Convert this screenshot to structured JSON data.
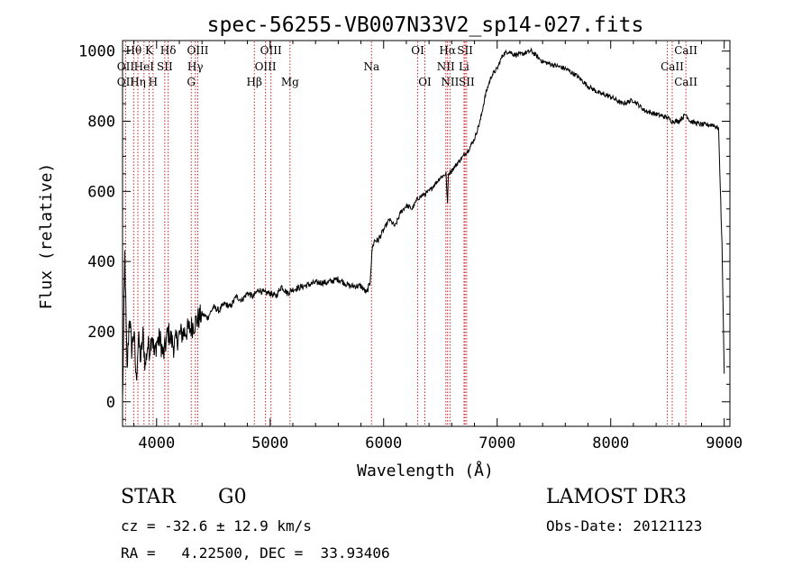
{
  "chart_data": {
    "type": "line",
    "title": "spec-56255-VB007N33V2_sp14-027.fits",
    "xlabel": "Wavelength (Å)",
    "ylabel": "Flux (relative)",
    "xlim": [
      3700,
      9050
    ],
    "ylim": [
      -70,
      1030
    ],
    "xticks": [
      4000,
      5000,
      6000,
      7000,
      8000,
      9000
    ],
    "yticks": [
      0,
      200,
      400,
      600,
      800,
      1000
    ],
    "xtick_labels": [
      "4000",
      "5000",
      "6000",
      "7000",
      "8000",
      "9000"
    ],
    "ytick_labels": [
      "0",
      "200",
      "400",
      "600",
      "800",
      "1000"
    ],
    "series": [
      {
        "name": "flux",
        "x": [
          3700,
          3720,
          3740,
          3760,
          3780,
          3800,
          3820,
          3840,
          3860,
          3880,
          3900,
          3920,
          3940,
          3960,
          3980,
          4000,
          4030,
          4060,
          4100,
          4150,
          4200,
          4250,
          4300,
          4350,
          4400,
          4450,
          4500,
          4550,
          4600,
          4650,
          4700,
          4750,
          4800,
          4850,
          4900,
          4950,
          5000,
          5050,
          5100,
          5150,
          5200,
          5300,
          5400,
          5500,
          5600,
          5700,
          5800,
          5850,
          5880,
          5900,
          5920,
          5950,
          6000,
          6050,
          6100,
          6150,
          6200,
          6250,
          6300,
          6350,
          6400,
          6450,
          6500,
          6550,
          6563,
          6570,
          6600,
          6650,
          6700,
          6750,
          6800,
          6850,
          6900,
          6950,
          7000,
          7050,
          7100,
          7150,
          7200,
          7300,
          7400,
          7500,
          7600,
          7700,
          7800,
          7900,
          8000,
          8100,
          8200,
          8300,
          8400,
          8500,
          8540,
          8600,
          8662,
          8700,
          8800,
          8900,
          8950,
          8980,
          9000
        ],
        "y": [
          0,
          420,
          80,
          250,
          150,
          200,
          60,
          180,
          120,
          190,
          100,
          160,
          150,
          200,
          130,
          170,
          180,
          130,
          200,
          160,
          190,
          200,
          210,
          230,
          250,
          240,
          270,
          260,
          280,
          270,
          300,
          290,
          310,
          300,
          320,
          310,
          310,
          300,
          330,
          310,
          320,
          330,
          340,
          340,
          350,
          330,
          330,
          310,
          340,
          440,
          460,
          460,
          490,
          520,
          500,
          540,
          560,
          550,
          580,
          590,
          600,
          620,
          640,
          650,
          560,
          650,
          660,
          680,
          700,
          720,
          750,
          800,
          880,
          930,
          950,
          990,
          1000,
          990,
          990,
          1000,
          970,
          960,
          950,
          930,
          900,
          880,
          870,
          850,
          860,
          830,
          820,
          810,
          800,
          800,
          820,
          800,
          790,
          790,
          780,
          450,
          80
        ]
      }
    ],
    "spectral_lines": [
      {
        "name": "Hθ",
        "x": 3798,
        "row": 0
      },
      {
        "name": "OII",
        "x": 3727,
        "row": 1
      },
      {
        "name": "OII",
        "x": 3727,
        "row": 2
      },
      {
        "name": "Hη",
        "x": 3835,
        "row": 2
      },
      {
        "name": "HeI",
        "x": 3889,
        "row": 1
      },
      {
        "name": "K",
        "x": 3934,
        "row": 0
      },
      {
        "name": "SII",
        "x": 4072,
        "row": 1
      },
      {
        "name": "H",
        "x": 3969,
        "row": 2
      },
      {
        "name": "Hδ",
        "x": 4102,
        "row": 0
      },
      {
        "name": "OIII",
        "x": 4363,
        "row": 0
      },
      {
        "name": "Hγ",
        "x": 4341,
        "row": 1
      },
      {
        "name": "G",
        "x": 4305,
        "row": 2
      },
      {
        "name": "Hβ",
        "x": 4861,
        "row": 2
      },
      {
        "name": "OIII",
        "x": 5007,
        "row": 0
      },
      {
        "name": "OIII",
        "x": 4959,
        "row": 1
      },
      {
        "name": "Mg",
        "x": 5175,
        "row": 2
      },
      {
        "name": "Na",
        "x": 5893,
        "row": 1
      },
      {
        "name": "OI",
        "x": 6300,
        "row": 0
      },
      {
        "name": "OI",
        "x": 6363,
        "row": 2
      },
      {
        "name": "Hα",
        "x": 6563,
        "row": 0
      },
      {
        "name": "SII",
        "x": 6717,
        "row": 0
      },
      {
        "name": "NII",
        "x": 6548,
        "row": 1
      },
      {
        "name": "Li",
        "x": 6708,
        "row": 1
      },
      {
        "name": "NII",
        "x": 6584,
        "row": 2
      },
      {
        "name": "SII",
        "x": 6731,
        "row": 2
      },
      {
        "name": "CaII",
        "x": 8662,
        "row": 0
      },
      {
        "name": "CaII",
        "x": 8542,
        "row": 1
      },
      {
        "name": "CaII",
        "x": 8662,
        "row": 2
      }
    ],
    "line_marks": [
      3727,
      3798,
      3835,
      3889,
      3934,
      3969,
      4072,
      4102,
      4305,
      4341,
      4363,
      4861,
      4959,
      5007,
      5175,
      5893,
      6300,
      6363,
      6548,
      6563,
      6584,
      6708,
      6717,
      6731,
      8498,
      8542,
      8662
    ]
  },
  "info": {
    "object_class": "STAR",
    "subclass": "G0",
    "survey": "LAMOST DR3",
    "cz": "cz = -32.6 ± 12.9 km/s",
    "obs_date": "Obs-Date: 20121123",
    "radec": "RA =   4.22500, DEC =  33.93406"
  },
  "colors": {
    "line_marker": "#cc2222",
    "spectrum": "#000000"
  }
}
